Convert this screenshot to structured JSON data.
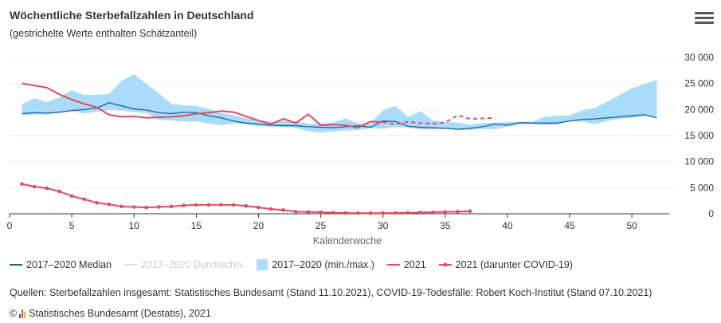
{
  "header": {
    "title": "Wöchentliche Sterbefallzahlen in Deutschland",
    "subtitle": "(gestrichelte Werte enthalten Schätzanteil)"
  },
  "legend": {
    "median": "2017–2020 Median",
    "mean": "2017–2020 Durchschn.",
    "range": "2017–2020 (min./max.)",
    "y2021": "2021",
    "covid": "2021 (darunter COVID-19)"
  },
  "footer": {
    "sources": "Quellen: Sterbefallzahlen insgesamt: Statistisches Bundesamt (Stand 11.10.2021), COVID-19-Todesfälle: Robert Koch-Institut (Stand 07.10.2021)",
    "copyright": "Statistisches Bundesamt (Destatis), 2021",
    "copyright_symbol": "©"
  },
  "colors": {
    "median": "#1f5f99",
    "range": "#a8dcfa",
    "y2021": "#e34a5f",
    "covid": "#e34a5f",
    "grid": "#eeeeee",
    "axis": "#333333"
  },
  "chart_data": {
    "type": "line",
    "xlabel": "Kalenderwoche",
    "ylabel": "",
    "xlim": [
      0,
      53
    ],
    "ylim": [
      0,
      30000
    ],
    "x_ticks": [
      0,
      5,
      10,
      15,
      20,
      25,
      30,
      35,
      40,
      45,
      50
    ],
    "y_ticks": [
      0,
      5000,
      10000,
      15000,
      20000,
      25000,
      30000
    ],
    "y_tick_labels": [
      "0",
      "5 000",
      "10 000",
      "15 000",
      "20 000",
      "25 000",
      "30 000"
    ],
    "weeks": [
      1,
      2,
      3,
      4,
      5,
      6,
      7,
      8,
      9,
      10,
      11,
      12,
      13,
      14,
      15,
      16,
      17,
      18,
      19,
      20,
      21,
      22,
      23,
      24,
      25,
      26,
      27,
      28,
      29,
      30,
      31,
      32,
      33,
      34,
      35,
      36,
      37,
      38,
      39,
      40,
      41,
      42,
      43,
      44,
      45,
      46,
      47,
      48,
      49,
      50,
      51,
      52
    ],
    "series": [
      {
        "name": "2017–2020 (min./max.)",
        "type": "range",
        "min": [
          18900,
          19000,
          19100,
          19300,
          19700,
          19200,
          19600,
          19900,
          19800,
          19500,
          19300,
          18000,
          17900,
          17700,
          17700,
          17300,
          17000,
          17300,
          17200,
          16800,
          16700,
          16700,
          16500,
          15800,
          15600,
          15800,
          16000,
          16100,
          16400,
          16300,
          16700,
          16500,
          16200,
          16200,
          16300,
          16100,
          16100,
          16300,
          16200,
          16700,
          17100,
          17200,
          17000,
          17100,
          17800,
          17700,
          17200,
          17800,
          18200,
          18400,
          18800,
          18600
        ],
        "max": [
          21000,
          22200,
          21400,
          22300,
          23700,
          22800,
          22800,
          23000,
          25500,
          26800,
          24900,
          23100,
          21100,
          20800,
          20700,
          20100,
          19300,
          18900,
          18400,
          18000,
          17700,
          17800,
          17800,
          17300,
          17300,
          17500,
          18300,
          17400,
          17300,
          19800,
          20700,
          18600,
          19700,
          17900,
          17600,
          17500,
          17100,
          17400,
          17500,
          17600,
          17600,
          17700,
          18600,
          18800,
          18900,
          19800,
          20300,
          21500,
          22800,
          24100,
          24900,
          25700
        ]
      },
      {
        "name": "2017–2020 Median",
        "values": [
          19200,
          19400,
          19300,
          19500,
          19800,
          20000,
          20300,
          21300,
          20700,
          20100,
          19900,
          19400,
          19200,
          19500,
          19400,
          18800,
          18400,
          17800,
          17400,
          17200,
          17000,
          16900,
          16900,
          16700,
          16600,
          16500,
          16700,
          16900,
          16600,
          17800,
          17700,
          16800,
          16600,
          16500,
          16400,
          16200,
          16400,
          16700,
          17200,
          17000,
          17500,
          17400,
          17400,
          17400,
          17800,
          18100,
          18200,
          18400,
          18600,
          18800,
          19000,
          18400
        ]
      },
      {
        "name": "2017–2020 Durchschn.",
        "hidden": true,
        "values": []
      },
      {
        "name": "2021",
        "values": [
          25000,
          24600,
          24200,
          22900,
          21900,
          21100,
          20400,
          19000,
          18600,
          18700,
          18400,
          18500,
          18600,
          18800,
          19200,
          19400,
          19700,
          19500,
          18700,
          17900,
          17200,
          18200,
          17400,
          19100,
          17000,
          17100,
          17000,
          16500,
          17700,
          17600,
          17200,
          17600,
          17400,
          17300,
          17500,
          18900,
          18200,
          18300,
          18400
        ],
        "estimated_from_week": 30
      },
      {
        "name": "2021 (darunter COVID-19)",
        "values": [
          5700,
          5200,
          4900,
          4300,
          3400,
          2800,
          2100,
          1800,
          1400,
          1300,
          1200,
          1300,
          1400,
          1600,
          1700,
          1700,
          1700,
          1700,
          1500,
          1200,
          900,
          700,
          400,
          350,
          300,
          200,
          150,
          120,
          120,
          120,
          150,
          180,
          250,
          300,
          350,
          400,
          500
        ]
      }
    ]
  }
}
